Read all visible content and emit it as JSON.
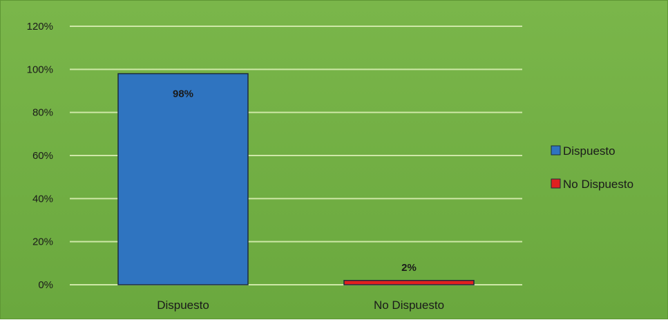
{
  "chart_data": {
    "type": "bar",
    "categories": [
      "Dispuesto",
      "No Dispuesto"
    ],
    "values": [
      98,
      2
    ],
    "data_labels": [
      "98%",
      "2%"
    ],
    "colors": [
      "#2f74c0",
      "#e02020"
    ],
    "title": "",
    "xlabel": "",
    "ylabel": "",
    "ylim": [
      0,
      120
    ],
    "yticks": [
      "0%",
      "20%",
      "40%",
      "60%",
      "80%",
      "100%",
      "120%"
    ],
    "grid": true,
    "legend_placement": "right",
    "legend": [
      {
        "label": "Dispuesto",
        "color": "#2f74c0"
      },
      {
        "label": "No Dispuesto",
        "color": "#e02020"
      }
    ],
    "background": "#6fae42",
    "gridline_color": "#cfe8a8"
  }
}
